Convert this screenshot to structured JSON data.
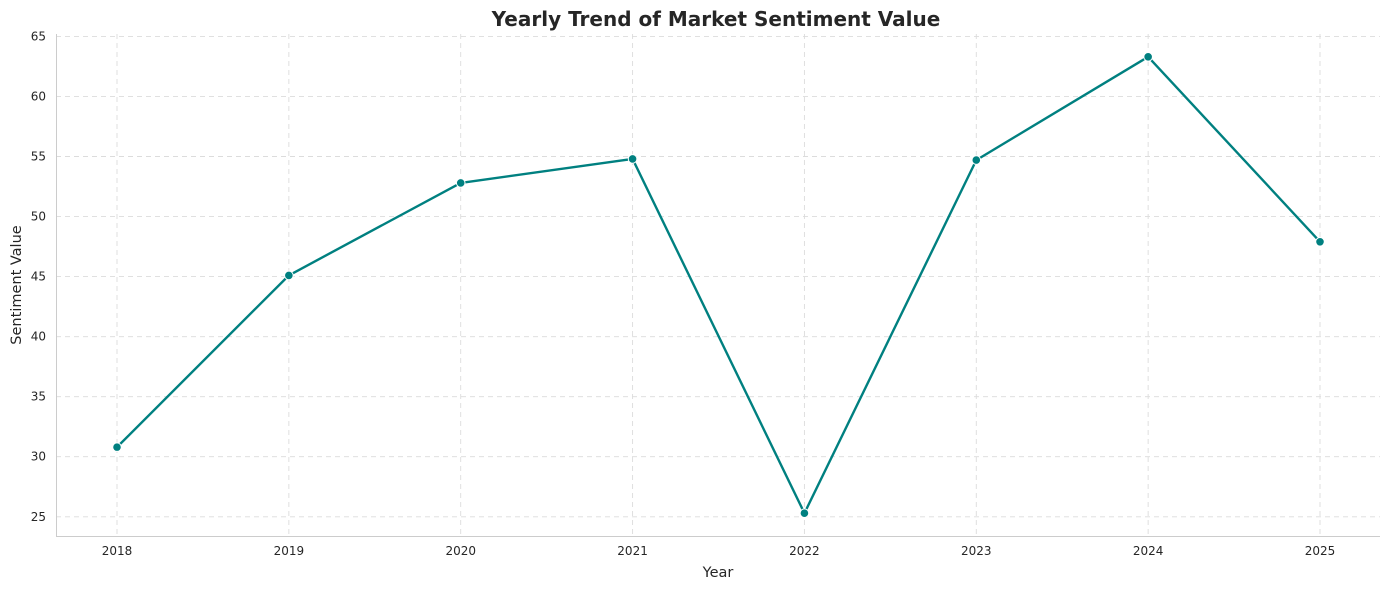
{
  "chart_data": {
    "type": "line",
    "title": "Yearly Trend of Market Sentiment Value",
    "xlabel": "Year",
    "ylabel": "Sentiment Value",
    "categories": [
      "2018",
      "2019",
      "2020",
      "2021",
      "2022",
      "2023",
      "2024",
      "2025"
    ],
    "series": [
      {
        "values": [
          30.8,
          45.1,
          52.8,
          54.8,
          25.3,
          54.7,
          63.3,
          47.9
        ],
        "color": "#008080",
        "marker": "circle"
      }
    ],
    "ylim": [
      23.4,
      65.2
    ],
    "yticks": [
      25,
      30,
      35,
      40,
      45,
      50,
      55,
      60,
      65
    ],
    "grid": true,
    "legend": "none"
  }
}
